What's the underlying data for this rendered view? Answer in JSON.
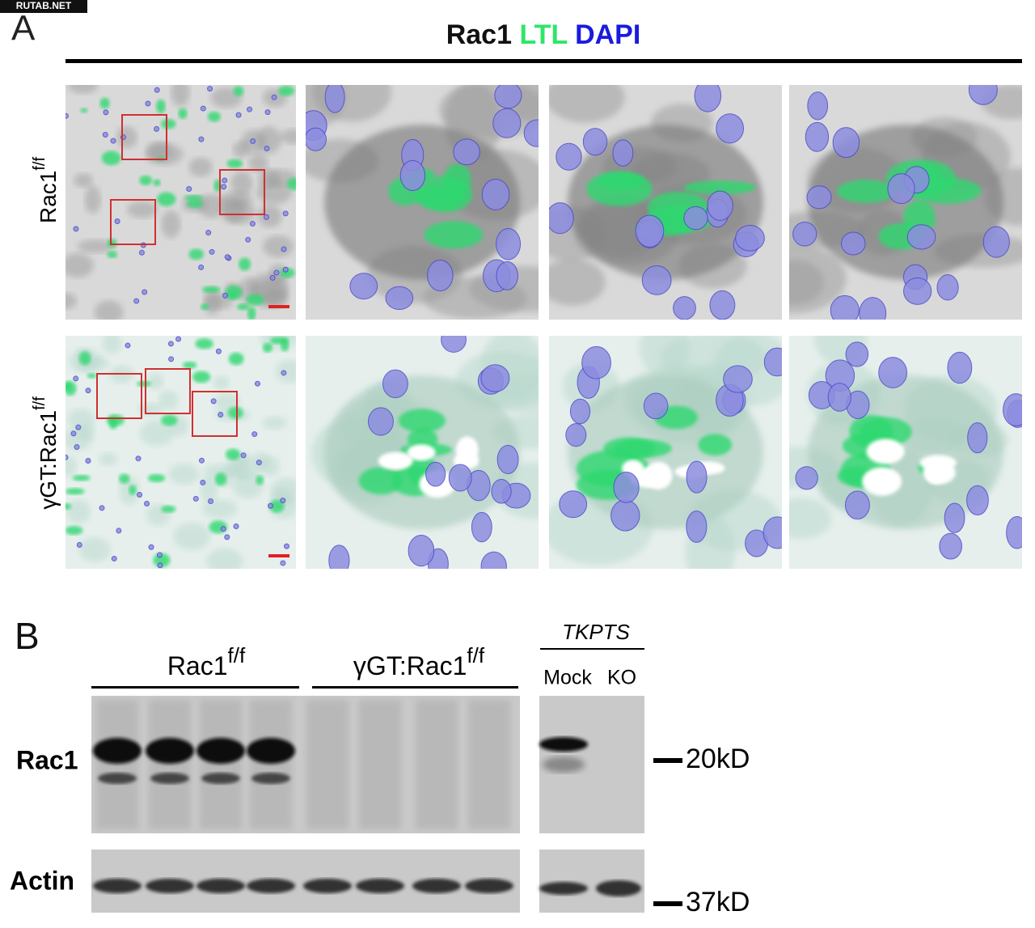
{
  "watermark": "RUTAB.NET",
  "panel_a": {
    "label": "A",
    "title": {
      "rac1": "Rac1",
      "ltl": "LTL",
      "dapi": "DAPI"
    },
    "rows": [
      {
        "base": "Rac1",
        "sup": "f/f"
      },
      {
        "base": "γGT:Rac1",
        "sup": "f/f"
      }
    ]
  },
  "panel_b": {
    "label": "B",
    "groups": [
      {
        "base": "Rac1",
        "sup": "f/f"
      },
      {
        "base": "γGT:Rac1",
        "sup": "f/f"
      }
    ],
    "cell_line": "TKPTS",
    "lanes": [
      "Mock",
      "KO"
    ],
    "blots": [
      "Rac1",
      "Actin"
    ],
    "markers": [
      "20kD",
      "37kD"
    ]
  }
}
